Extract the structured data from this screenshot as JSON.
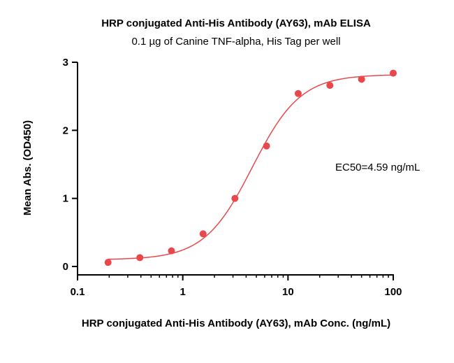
{
  "chart_data": {
    "type": "scatter",
    "title": "HRP conjugated Anti-His Antibody (AY63), mAb ELISA",
    "subtitle": "0.1 µg of Canine TNF-alpha, His Tag per well",
    "xlabel": "HRP conjugated Anti-His Antibody (AY63), mAb Conc. (ng/mL)",
    "ylabel": "Mean Abs. (OD450)",
    "xscale": "log",
    "xlim": [
      0.1,
      100
    ],
    "ylim": [
      0,
      3
    ],
    "xticks": [
      0.1,
      1,
      10,
      100
    ],
    "xtick_labels": [
      "0.1",
      "1",
      "10",
      "100"
    ],
    "yticks": [
      0,
      1,
      2,
      3
    ],
    "ytick_labels": [
      "0",
      "1",
      "2",
      "3"
    ],
    "grid": false,
    "legend": "none",
    "annotation": "EC50=4.59 ng/mL",
    "color": "#e8484c",
    "series": [
      {
        "x": [
          0.195,
          0.391,
          0.781,
          1.56,
          3.13,
          6.25,
          12.5,
          25,
          50,
          100
        ],
        "y": [
          0.06,
          0.13,
          0.23,
          0.48,
          1.0,
          1.77,
          2.54,
          2.66,
          2.75,
          2.84
        ]
      }
    ],
    "fit": {
      "model": "4PL",
      "bottom": 0.1,
      "top": 2.82,
      "ec50": 4.59,
      "hill": 1.9,
      "x_range": [
        0.195,
        100
      ]
    }
  }
}
